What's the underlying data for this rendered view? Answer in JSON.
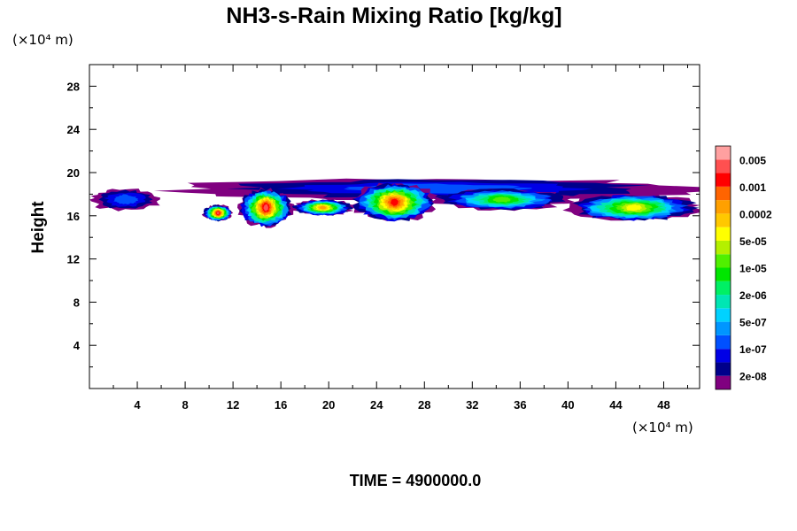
{
  "chart_data": {
    "type": "heatmap",
    "title": "NH3-s-Rain Mixing Ratio [kg/kg]",
    "xlabel": "",
    "ylabel": "Height",
    "x_unit": "(×10⁴ m)",
    "y_unit": "(×10⁴ m)",
    "xlim": [
      0,
      51
    ],
    "ylim": [
      0,
      30
    ],
    "x_ticks": [
      4,
      8,
      12,
      16,
      20,
      24,
      28,
      32,
      36,
      40,
      44,
      48
    ],
    "y_ticks": [
      4,
      8,
      12,
      16,
      20,
      24,
      28
    ],
    "colorbar": {
      "colors": [
        "#800080",
        "#00008b",
        "#0000e6",
        "#0050ff",
        "#0096ff",
        "#00d2ff",
        "#00e6b4",
        "#00f064",
        "#00e600",
        "#50f000",
        "#b4f000",
        "#ffff00",
        "#ffc800",
        "#ffa000",
        "#ff6400",
        "#ff0000",
        "#ff5050",
        "#ffa0a0"
      ],
      "labels": [
        "2e-08",
        "1e-07",
        "5e-07",
        "2e-06",
        "1e-05",
        "5e-05",
        "0.0002",
        "0.001",
        "0.005"
      ]
    },
    "cloud_regions": [
      {
        "x": [
          0,
          6
        ],
        "y": [
          16.5,
          18.5
        ],
        "max_level": 3
      },
      {
        "x": [
          7,
          51
        ],
        "y": [
          17.5,
          19.5
        ],
        "max_level": 3
      },
      {
        "x": [
          9.5,
          12
        ],
        "y": [
          15.5,
          17
        ],
        "max_level": 16
      },
      {
        "x": [
          12.5,
          17
        ],
        "y": [
          15,
          18.5
        ],
        "max_level": 16
      },
      {
        "x": [
          17,
          22
        ],
        "y": [
          16,
          17.5
        ],
        "max_level": 13
      },
      {
        "x": [
          22,
          29
        ],
        "y": [
          15.5,
          19
        ],
        "max_level": 15
      },
      {
        "x": [
          29,
          40
        ],
        "y": [
          16.5,
          18.5
        ],
        "max_level": 9
      },
      {
        "x": [
          40,
          51
        ],
        "y": [
          15.5,
          18
        ],
        "max_level": 11
      }
    ],
    "footer": "TIME = 4900000.0"
  }
}
